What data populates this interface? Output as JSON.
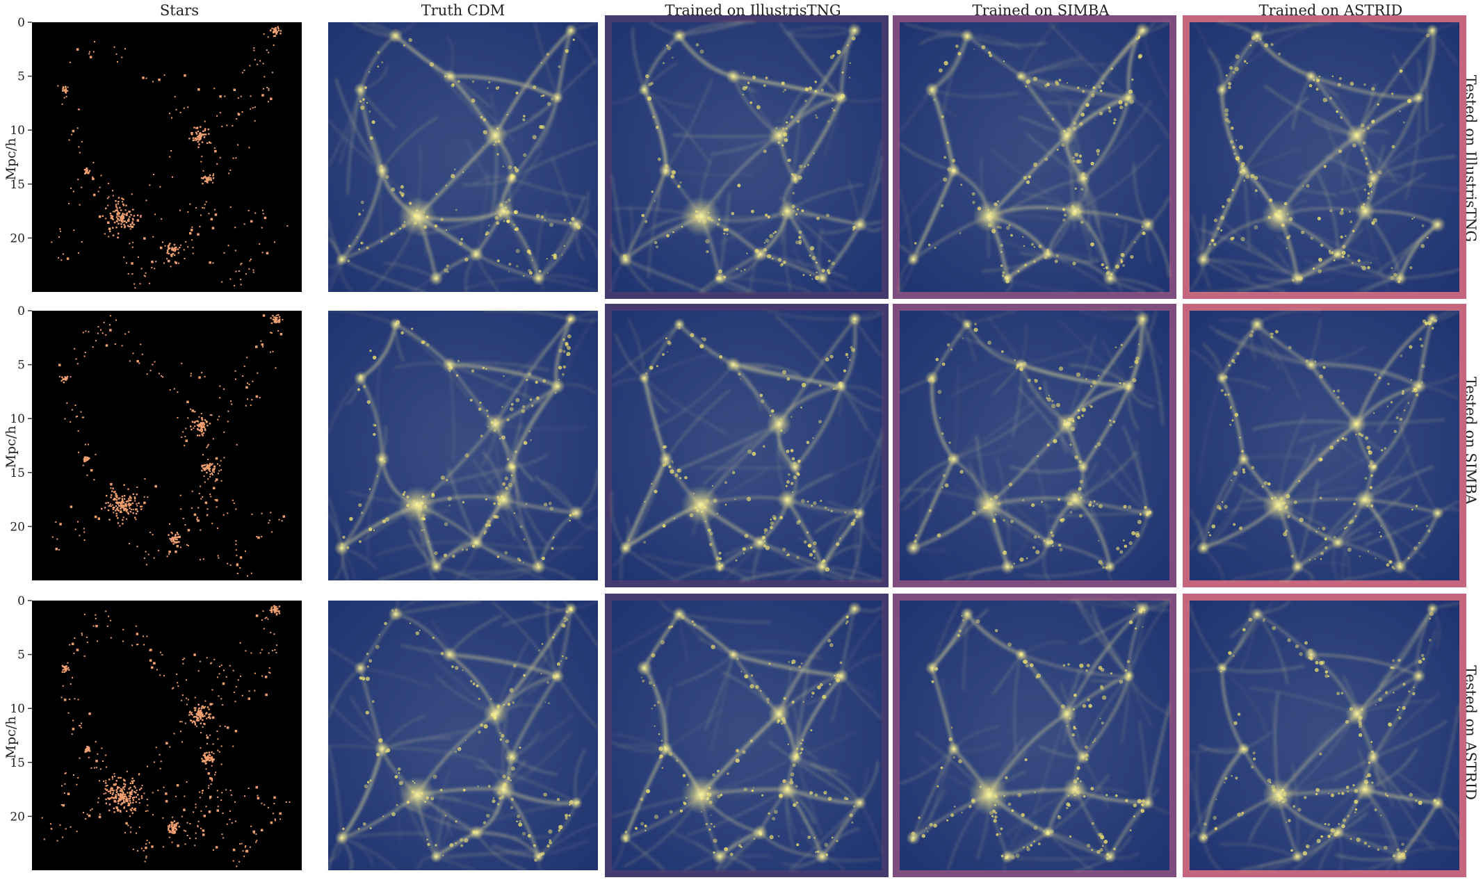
{
  "columns": [
    {
      "title": "Stars"
    },
    {
      "title": "Truth CDM"
    },
    {
      "title": "Trained on IllustrisTNG",
      "frame_color": "#453a6e"
    },
    {
      "title": "Trained on SIMBA",
      "frame_color": "#7f4d7e"
    },
    {
      "title": "Trained on ASTRID",
      "frame_color": "#c4677e"
    }
  ],
  "rows": [
    {
      "title": "Tested on IllustrisTNG"
    },
    {
      "title": "Tested on SIMBA"
    },
    {
      "title": "Tested on ASTRID"
    }
  ],
  "y_axis": {
    "label": "Mpc/h",
    "ticks": [
      "0",
      "5",
      "10",
      "15",
      "20"
    ],
    "tick_values": [
      0,
      5,
      10,
      15,
      20
    ],
    "max": 25
  },
  "colors": {
    "stars_background": "#000000",
    "stars_particles": "#f0a070",
    "cdm_background": "#24386e",
    "cdm_filaments": "#c4c292",
    "cdm_nodes": "#fff070"
  }
}
